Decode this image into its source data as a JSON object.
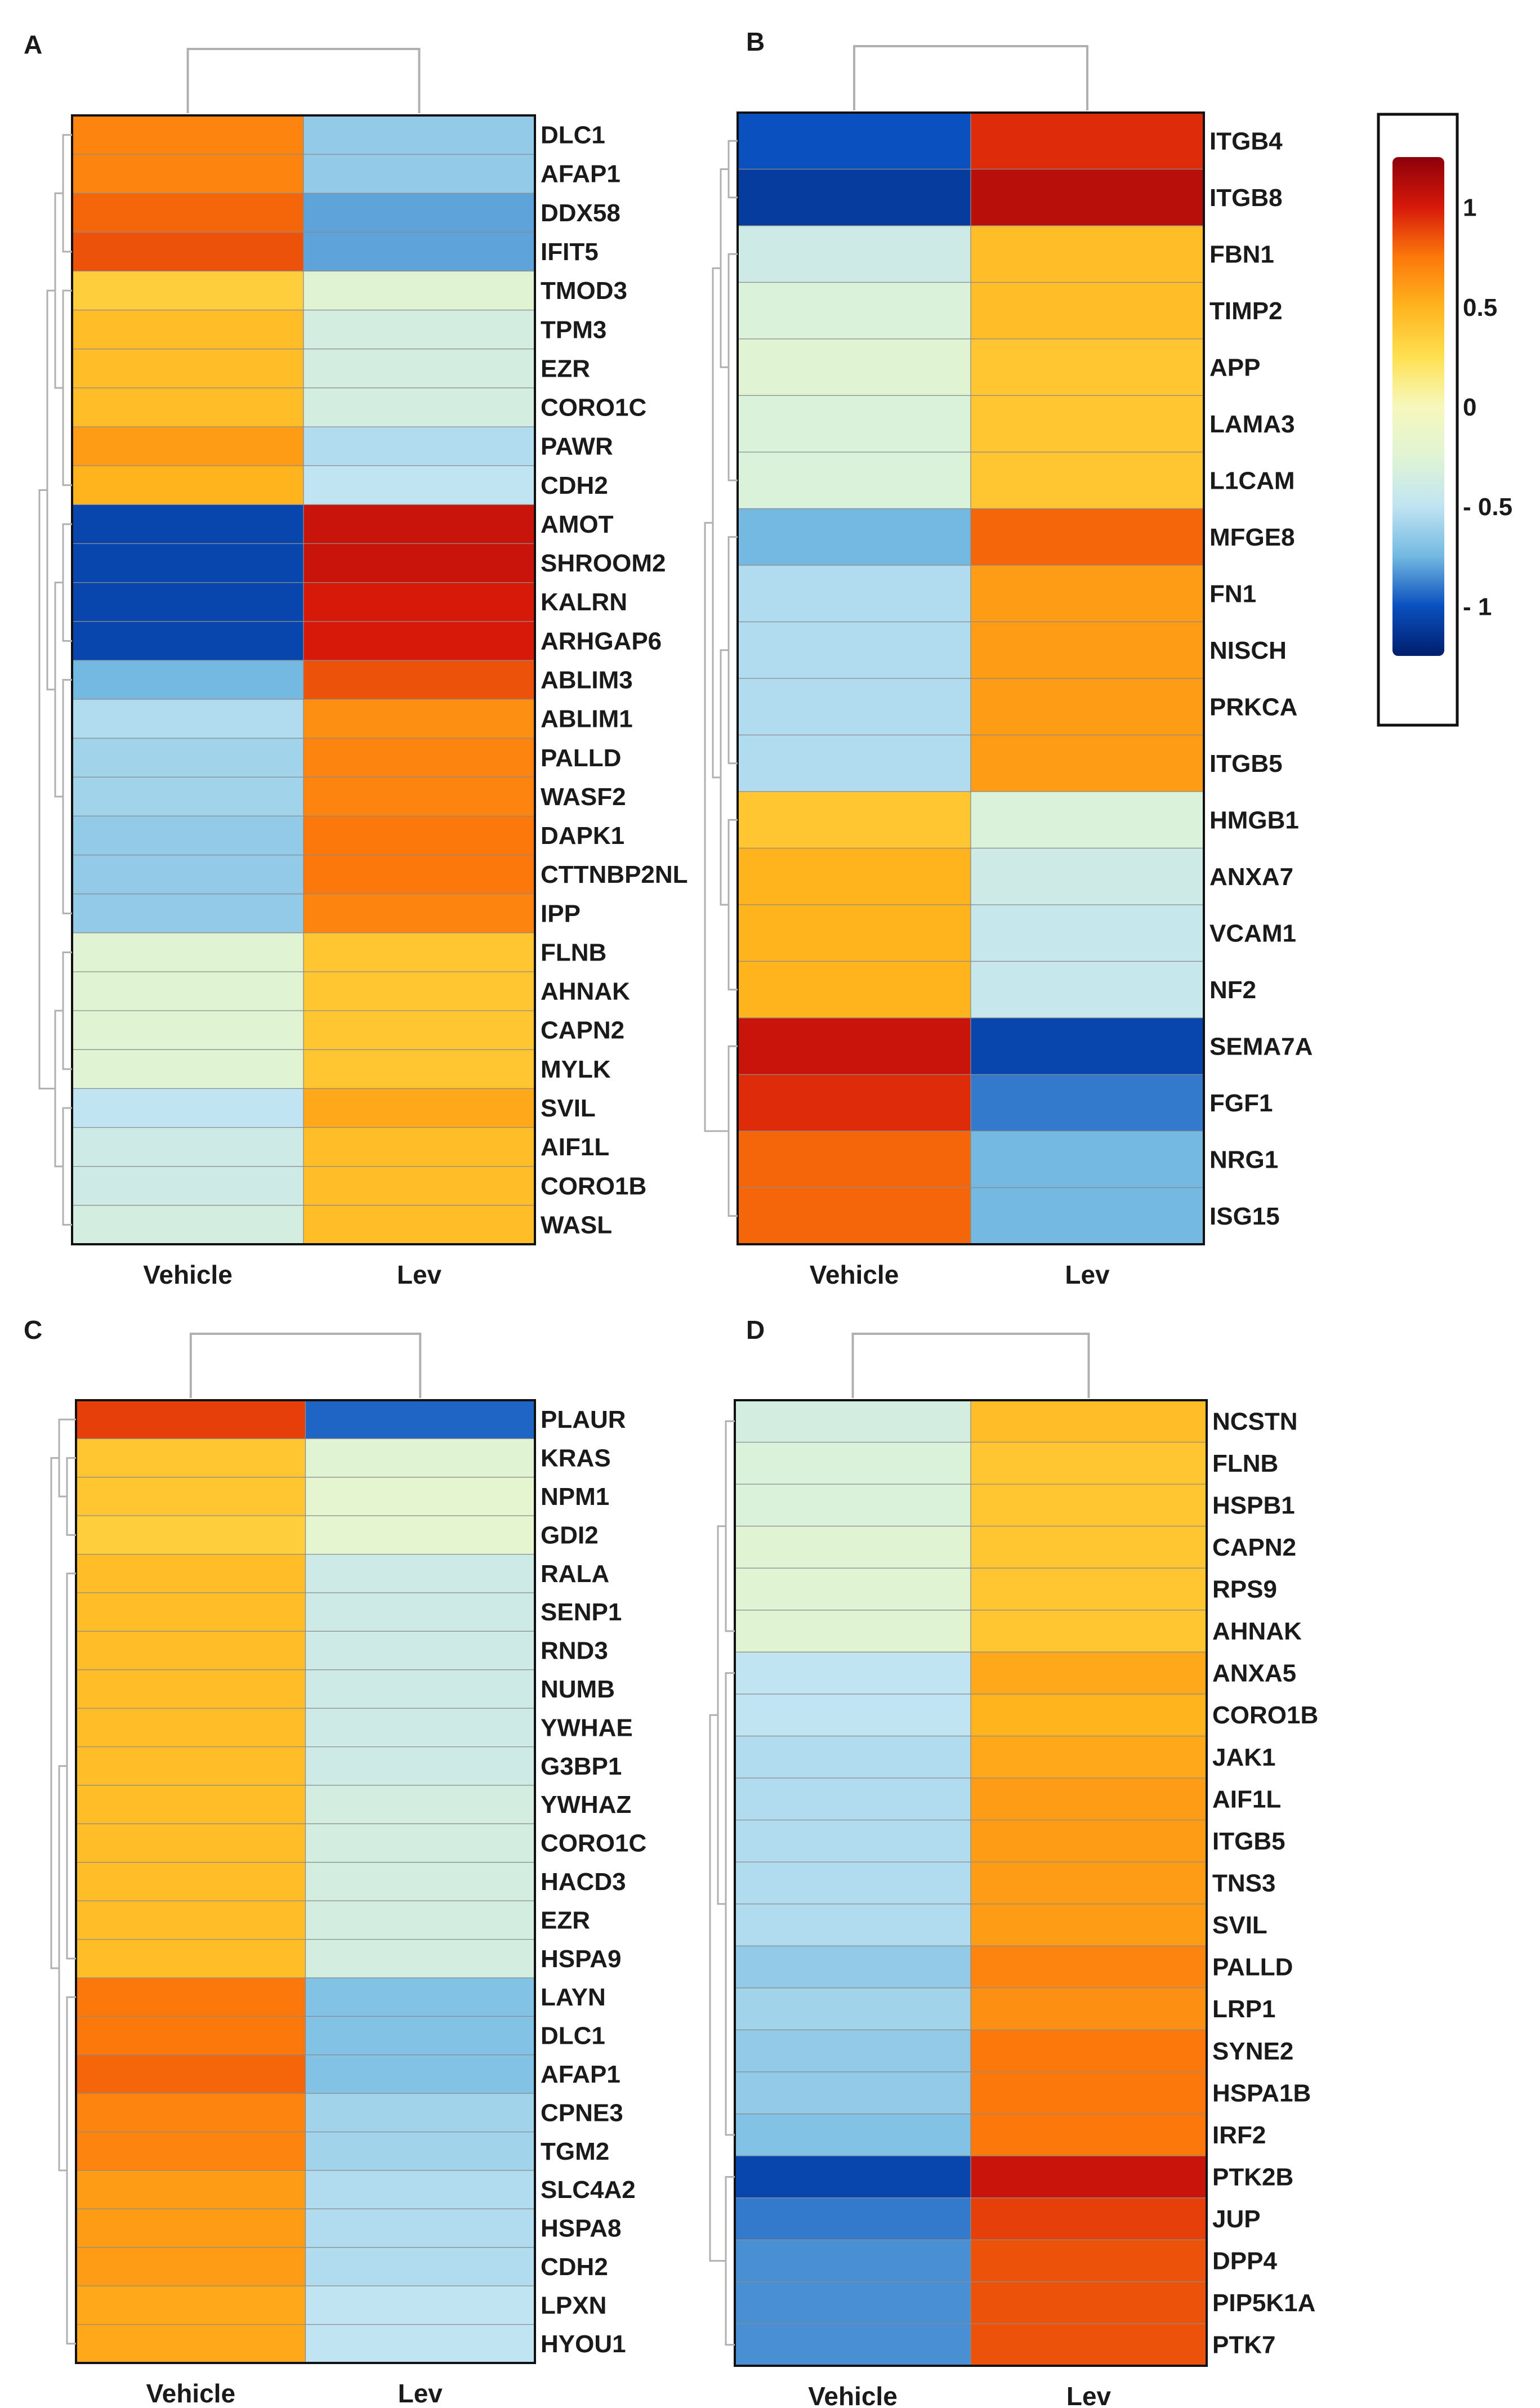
{
  "chart_data": [
    {
      "type": "heatmap",
      "panel": "A",
      "columns": [
        "Vehicle",
        "Lev"
      ],
      "rows": [
        "DLC1",
        "AFAP1",
        "DDX58",
        "IFIT5",
        "TMOD3",
        "TPM3",
        "EZR",
        "CORO1C",
        "PAWR",
        "CDH2",
        "AMOT",
        "SHROOM2",
        "KALRN",
        "ARHGAP6",
        "ABLIM3",
        "ABLIM1",
        "PALLD",
        "WASF2",
        "DAPK1",
        "CTTNBP2NL",
        "IPP",
        "FLNB",
        "AHNAK",
        "CAPN2",
        "MYLK",
        "SVIL",
        "AIF1L",
        "CORO1B",
        "WASL"
      ],
      "values": [
        [
          0.7,
          -0.65
        ],
        [
          0.7,
          -0.65
        ],
        [
          0.8,
          -0.8
        ],
        [
          0.85,
          -0.8
        ],
        [
          0.35,
          -0.25
        ],
        [
          0.45,
          -0.35
        ],
        [
          0.45,
          -0.35
        ],
        [
          0.45,
          -0.35
        ],
        [
          0.6,
          -0.55
        ],
        [
          0.5,
          -0.5
        ],
        [
          -1.05,
          1.05
        ],
        [
          -1.05,
          1.05
        ],
        [
          -1.05,
          1.0
        ],
        [
          -1.05,
          1.0
        ],
        [
          -0.75,
          0.85
        ],
        [
          -0.55,
          0.65
        ],
        [
          -0.6,
          0.7
        ],
        [
          -0.6,
          0.7
        ],
        [
          -0.65,
          0.75
        ],
        [
          -0.65,
          0.75
        ],
        [
          -0.65,
          0.7
        ],
        [
          -0.25,
          0.4
        ],
        [
          -0.25,
          0.4
        ],
        [
          -0.25,
          0.4
        ],
        [
          -0.25,
          0.4
        ],
        [
          -0.5,
          0.55
        ],
        [
          -0.4,
          0.45
        ],
        [
          -0.4,
          0.45
        ],
        [
          -0.35,
          0.45
        ]
      ],
      "clusters": [
        {
          "start": 0,
          "end": 3
        },
        {
          "start": 4,
          "end": 9
        },
        {
          "start": 10,
          "end": 13
        },
        {
          "start": 14,
          "end": 20
        },
        {
          "start": 21,
          "end": 24
        },
        {
          "start": 25,
          "end": 28
        }
      ]
    },
    {
      "type": "heatmap",
      "panel": "B",
      "columns": [
        "Vehicle",
        "Lev"
      ],
      "rows": [
        "ITGB4",
        "ITGB8",
        "FBN1",
        "TIMP2",
        "APP",
        "LAMA3",
        "L1CAM",
        "MFGE8",
        "FN1",
        "NISCH",
        "PRKCA",
        "ITGB5",
        "HMGB1",
        "ANXA7",
        "VCAM1",
        "NF2",
        "SEMA7A",
        "FGF1",
        "NRG1",
        "ISG15"
      ],
      "values": [
        [
          -1.0,
          0.95
        ],
        [
          -1.1,
          1.1
        ],
        [
          -0.4,
          0.45
        ],
        [
          -0.3,
          0.45
        ],
        [
          -0.25,
          0.4
        ],
        [
          -0.3,
          0.4
        ],
        [
          -0.3,
          0.4
        ],
        [
          -0.75,
          0.8
        ],
        [
          -0.55,
          0.6
        ],
        [
          -0.55,
          0.6
        ],
        [
          -0.55,
          0.6
        ],
        [
          -0.55,
          0.6
        ],
        [
          0.4,
          -0.3
        ],
        [
          0.5,
          -0.4
        ],
        [
          0.5,
          -0.45
        ],
        [
          0.5,
          -0.45
        ],
        [
          1.05,
          -1.05
        ],
        [
          0.95,
          -0.9
        ],
        [
          0.8,
          -0.75
        ],
        [
          0.8,
          -0.75
        ]
      ],
      "clusters": [
        {
          "start": 0,
          "end": 1
        },
        {
          "start": 2,
          "end": 6
        },
        {
          "start": 7,
          "end": 11
        },
        {
          "start": 12,
          "end": 15
        },
        {
          "start": 16,
          "end": 19
        }
      ]
    },
    {
      "type": "heatmap",
      "panel": "C",
      "columns": [
        "Vehicle",
        "Lev"
      ],
      "rows": [
        "PLAUR",
        "KRAS",
        "NPM1",
        "GDI2",
        "RALA",
        "SENP1",
        "RND3",
        "NUMB",
        "YWHAE",
        "G3BP1",
        "YWHAZ",
        "CORO1C",
        "HACD3",
        "EZR",
        "HSPA9",
        "LAYN",
        "DLC1",
        "AFAP1",
        "CPNE3",
        "TGM2",
        "SLC4A2",
        "HSPA8",
        "CDH2",
        "LPXN",
        "HYOU1"
      ],
      "values": [
        [
          0.9,
          -0.95
        ],
        [
          0.4,
          -0.25
        ],
        [
          0.4,
          -0.2
        ],
        [
          0.35,
          -0.2
        ],
        [
          0.45,
          -0.4
        ],
        [
          0.45,
          -0.4
        ],
        [
          0.45,
          -0.4
        ],
        [
          0.45,
          -0.4
        ],
        [
          0.45,
          -0.4
        ],
        [
          0.45,
          -0.4
        ],
        [
          0.45,
          -0.35
        ],
        [
          0.45,
          -0.35
        ],
        [
          0.45,
          -0.35
        ],
        [
          0.45,
          -0.35
        ],
        [
          0.45,
          -0.35
        ],
        [
          0.75,
          -0.7
        ],
        [
          0.75,
          -0.7
        ],
        [
          0.8,
          -0.7
        ],
        [
          0.7,
          -0.6
        ],
        [
          0.7,
          -0.6
        ],
        [
          0.6,
          -0.55
        ],
        [
          0.6,
          -0.55
        ],
        [
          0.6,
          -0.55
        ],
        [
          0.55,
          -0.5
        ],
        [
          0.55,
          -0.5
        ]
      ],
      "clusters": [
        {
          "start": 0,
          "end": 0
        },
        {
          "start": 1,
          "end": 3
        },
        {
          "start": 4,
          "end": 14
        },
        {
          "start": 15,
          "end": 24
        }
      ]
    },
    {
      "type": "heatmap",
      "panel": "D",
      "columns": [
        "Vehicle",
        "Lev"
      ],
      "rows": [
        "NCSTN",
        "FLNB",
        "HSPB1",
        "CAPN2",
        "RPS9",
        "AHNAK",
        "ANXA5",
        "CORO1B",
        "JAK1",
        "AIF1L",
        "ITGB5",
        "TNS3",
        "SVIL",
        "PALLD",
        "LRP1",
        "SYNE2",
        "HSPA1B",
        "IRF2",
        "PTK2B",
        "JUP",
        "DPP4",
        "PIP5K1A",
        "PTK7"
      ],
      "values": [
        [
          -0.35,
          0.45
        ],
        [
          -0.3,
          0.4
        ],
        [
          -0.3,
          0.4
        ],
        [
          -0.25,
          0.4
        ],
        [
          -0.25,
          0.4
        ],
        [
          -0.25,
          0.4
        ],
        [
          -0.5,
          0.55
        ],
        [
          -0.5,
          0.5
        ],
        [
          -0.55,
          0.55
        ],
        [
          -0.55,
          0.6
        ],
        [
          -0.55,
          0.6
        ],
        [
          -0.55,
          0.6
        ],
        [
          -0.55,
          0.6
        ],
        [
          -0.65,
          0.7
        ],
        [
          -0.6,
          0.65
        ],
        [
          -0.65,
          0.75
        ],
        [
          -0.65,
          0.75
        ],
        [
          -0.7,
          0.75
        ],
        [
          -1.05,
          1.05
        ],
        [
          -0.9,
          0.9
        ],
        [
          -0.85,
          0.85
        ],
        [
          -0.85,
          0.85
        ],
        [
          -0.85,
          0.85
        ]
      ],
      "clusters": [
        {
          "start": 0,
          "end": 5
        },
        {
          "start": 6,
          "end": 17
        },
        {
          "start": 18,
          "end": 22
        }
      ]
    }
  ],
  "panel_labels": [
    "A",
    "B",
    "C",
    "D"
  ],
  "colorbar": {
    "ticks": [
      1,
      0.5,
      0,
      -0.5,
      -1
    ],
    "tick_labels": [
      "1",
      "0.5",
      "0",
      "- 0.5",
      "- 1"
    ],
    "range": [
      -1.25,
      1.25
    ]
  }
}
